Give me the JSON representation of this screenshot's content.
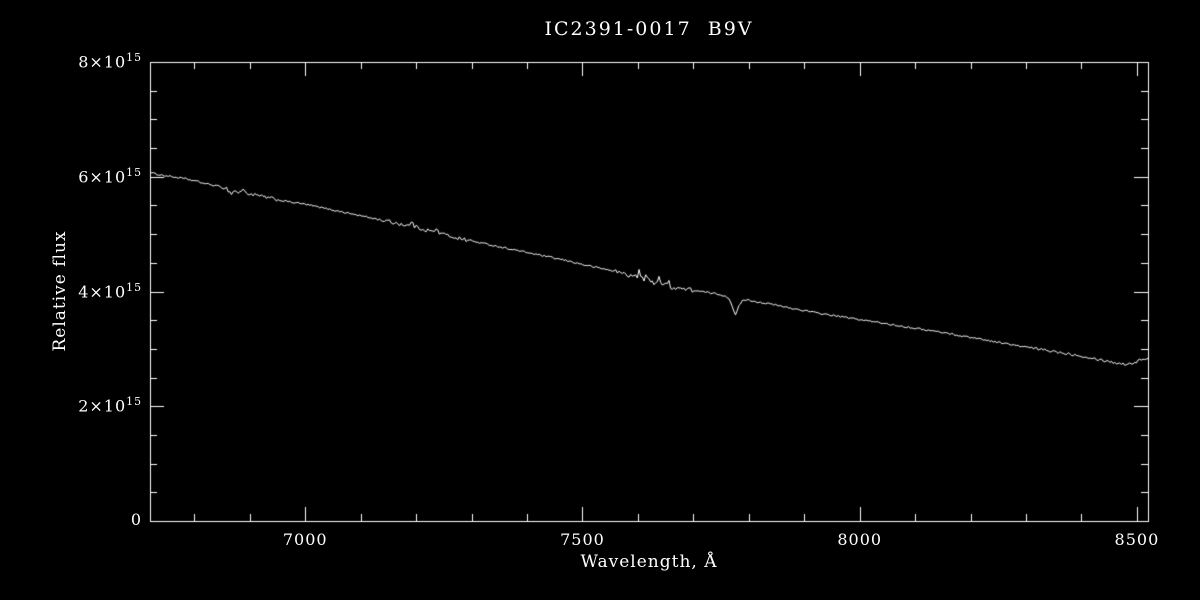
{
  "chart_data": {
    "type": "line",
    "title": "IC2391-0017  B9V",
    "xlabel": "Wavelength, Å",
    "ylabel": "Relative flux",
    "xlim": [
      6720,
      8520
    ],
    "ylim": [
      0,
      8000000000000000.0
    ],
    "flux_unit": 1000000000000000.0,
    "background": "#000000",
    "axis_color": "#ffffff",
    "line_color": "#ffffff",
    "grid": "off",
    "legend": "none",
    "x_ticks": [
      {
        "value": 7000,
        "label": "7000"
      },
      {
        "value": 7500,
        "label": "7500"
      },
      {
        "value": 8000,
        "label": "8000"
      },
      {
        "value": 8500,
        "label": "8500"
      }
    ],
    "y_ticks": [
      {
        "value": 0,
        "label": "0"
      },
      {
        "value": 2000000000000000.0,
        "label": "2×10^15"
      },
      {
        "value": 4000000000000000.0,
        "label": "4×10^15"
      },
      {
        "value": 6000000000000000.0,
        "label": "6×10^15"
      },
      {
        "value": 8000000000000000.0,
        "label": "8×10^15"
      }
    ],
    "x_minor_step": 100,
    "y_minor_step": 500000000000000.0,
    "series": [
      {
        "name": "spectrum",
        "points": [
          [
            6720,
            6.07
          ],
          [
            6740,
            6.03
          ],
          [
            6760,
            6.0
          ],
          [
            6780,
            5.97
          ],
          [
            6800,
            5.93
          ],
          [
            6820,
            5.88
          ],
          [
            6840,
            5.84
          ],
          [
            6858,
            5.8
          ],
          [
            6866,
            5.7
          ],
          [
            6872,
            5.76
          ],
          [
            6880,
            5.72
          ],
          [
            6890,
            5.73
          ],
          [
            6900,
            5.7
          ],
          [
            6920,
            5.66
          ],
          [
            6940,
            5.62
          ],
          [
            6960,
            5.58
          ],
          [
            6980,
            5.55
          ],
          [
            7000,
            5.52
          ],
          [
            7020,
            5.48
          ],
          [
            7040,
            5.44
          ],
          [
            7060,
            5.4
          ],
          [
            7080,
            5.36
          ],
          [
            7100,
            5.32
          ],
          [
            7120,
            5.28
          ],
          [
            7140,
            5.24
          ],
          [
            7160,
            5.2
          ],
          [
            7180,
            5.16
          ],
          [
            7200,
            5.12
          ],
          [
            7220,
            5.07
          ],
          [
            7240,
            5.02
          ],
          [
            7260,
            4.97
          ],
          [
            7280,
            4.92
          ],
          [
            7300,
            4.88
          ],
          [
            7320,
            4.84
          ],
          [
            7340,
            4.8
          ],
          [
            7360,
            4.76
          ],
          [
            7380,
            4.72
          ],
          [
            7400,
            4.68
          ],
          [
            7420,
            4.64
          ],
          [
            7440,
            4.6
          ],
          [
            7460,
            4.56
          ],
          [
            7480,
            4.52
          ],
          [
            7500,
            4.47
          ],
          [
            7520,
            4.43
          ],
          [
            7540,
            4.39
          ],
          [
            7560,
            4.35
          ],
          [
            7580,
            4.3
          ],
          [
            7600,
            4.24
          ],
          [
            7620,
            4.18
          ],
          [
            7640,
            4.13
          ],
          [
            7660,
            4.08
          ],
          [
            7680,
            4.05
          ],
          [
            7700,
            4.02
          ],
          [
            7720,
            3.99
          ],
          [
            7740,
            3.96
          ],
          [
            7755,
            3.93
          ],
          [
            7765,
            3.88
          ],
          [
            7772,
            3.7
          ],
          [
            7776,
            3.58
          ],
          [
            7782,
            3.74
          ],
          [
            7790,
            3.86
          ],
          [
            7800,
            3.85
          ],
          [
            7820,
            3.81
          ],
          [
            7840,
            3.78
          ],
          [
            7860,
            3.74
          ],
          [
            7880,
            3.7
          ],
          [
            7900,
            3.67
          ],
          [
            7920,
            3.63
          ],
          [
            7940,
            3.6
          ],
          [
            7960,
            3.57
          ],
          [
            7980,
            3.54
          ],
          [
            8000,
            3.51
          ],
          [
            8020,
            3.48
          ],
          [
            8040,
            3.45
          ],
          [
            8060,
            3.42
          ],
          [
            8080,
            3.39
          ],
          [
            8100,
            3.36
          ],
          [
            8120,
            3.33
          ],
          [
            8140,
            3.3
          ],
          [
            8160,
            3.27
          ],
          [
            8180,
            3.23
          ],
          [
            8200,
            3.2
          ],
          [
            8220,
            3.17
          ],
          [
            8240,
            3.13
          ],
          [
            8260,
            3.1
          ],
          [
            8280,
            3.06
          ],
          [
            8300,
            3.03
          ],
          [
            8320,
            3.0
          ],
          [
            8340,
            2.97
          ],
          [
            8360,
            2.94
          ],
          [
            8380,
            2.91
          ],
          [
            8400,
            2.88
          ],
          [
            8420,
            2.84
          ],
          [
            8440,
            2.8
          ],
          [
            8460,
            2.76
          ],
          [
            8480,
            2.73
          ],
          [
            8495,
            2.76
          ],
          [
            8510,
            2.82
          ],
          [
            8520,
            2.84
          ]
        ],
        "noise": {
          "base": 0.015,
          "regions": [
            {
              "from": 6850,
              "to": 6950,
              "amp": 0.03
            },
            {
              "from": 7140,
              "to": 7300,
              "amp": 0.035
            },
            {
              "from": 7560,
              "to": 7700,
              "amp": 0.042
            },
            {
              "from": 8300,
              "to": 8520,
              "amp": 0.024
            }
          ],
          "seed": 1234
        },
        "spikes": [
          {
            "x": 6887,
            "dy": 0.07
          },
          {
            "x": 7193,
            "dy": 0.1
          },
          {
            "x": 7238,
            "dy": 0.08
          },
          {
            "x": 7602,
            "dy": 0.14
          },
          {
            "x": 7615,
            "dy": 0.1
          },
          {
            "x": 7638,
            "dy": 0.16
          },
          {
            "x": 7655,
            "dy": 0.09
          }
        ]
      }
    ]
  }
}
